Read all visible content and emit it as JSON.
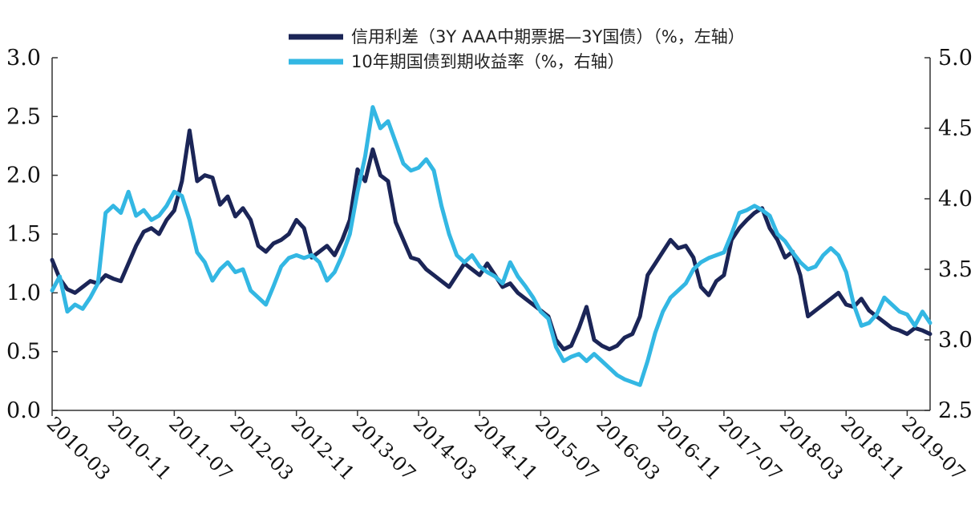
{
  "chart_data": {
    "type": "line",
    "title": "",
    "xlabel": "",
    "ylabel_left": "",
    "ylabel_right": "",
    "x_start": "2010-03",
    "x_end": "2019-10",
    "x_tick_labels": [
      "2010-03",
      "2010-11",
      "2011-07",
      "2012-03",
      "2012-11",
      "2013-07",
      "2014-03",
      "2014-11",
      "2015-07",
      "2016-03",
      "2016-11",
      "2017-07",
      "2018-03",
      "2018-11",
      "2019-07"
    ],
    "y_left": {
      "range": [
        0,
        3.0
      ],
      "ticks": [
        "0.0",
        "0.5",
        "1.0",
        "1.5",
        "2.0",
        "2.5",
        "3.0"
      ]
    },
    "y_right": {
      "range": [
        2.5,
        5.0
      ],
      "ticks": [
        "2.5",
        "3.0",
        "3.5",
        "4.0",
        "4.5",
        "5.0"
      ]
    },
    "grid": false,
    "legend_position": "top-center",
    "series": [
      {
        "name": "信用利差（3Y AAA中期票据—3Y国债）（%，左轴）",
        "axis": "left",
        "color": "#1b2557",
        "points": [
          [
            "2010-03",
            1.28
          ],
          [
            "2010-04",
            1.12
          ],
          [
            "2010-05",
            1.03
          ],
          [
            "2010-06",
            1.0
          ],
          [
            "2010-07",
            1.05
          ],
          [
            "2010-08",
            1.1
          ],
          [
            "2010-09",
            1.08
          ],
          [
            "2010-10",
            1.15
          ],
          [
            "2010-11",
            1.12
          ],
          [
            "2010-12",
            1.1
          ],
          [
            "2011-01",
            1.25
          ],
          [
            "2011-02",
            1.4
          ],
          [
            "2011-03",
            1.52
          ],
          [
            "2011-04",
            1.55
          ],
          [
            "2011-05",
            1.5
          ],
          [
            "2011-06",
            1.62
          ],
          [
            "2011-07",
            1.7
          ],
          [
            "2011-08",
            1.95
          ],
          [
            "2011-09",
            2.38
          ],
          [
            "2011-10",
            1.95
          ],
          [
            "2011-11",
            2.0
          ],
          [
            "2011-12",
            1.98
          ],
          [
            "2012-01",
            1.75
          ],
          [
            "2012-02",
            1.82
          ],
          [
            "2012-03",
            1.65
          ],
          [
            "2012-04",
            1.72
          ],
          [
            "2012-05",
            1.62
          ],
          [
            "2012-06",
            1.4
          ],
          [
            "2012-07",
            1.35
          ],
          [
            "2012-08",
            1.42
          ],
          [
            "2012-09",
            1.45
          ],
          [
            "2012-10",
            1.5
          ],
          [
            "2012-11",
            1.62
          ],
          [
            "2012-12",
            1.55
          ],
          [
            "2013-01",
            1.3
          ],
          [
            "2013-02",
            1.35
          ],
          [
            "2013-03",
            1.4
          ],
          [
            "2013-04",
            1.32
          ],
          [
            "2013-05",
            1.45
          ],
          [
            "2013-06",
            1.62
          ],
          [
            "2013-07",
            2.05
          ],
          [
            "2013-08",
            1.95
          ],
          [
            "2013-09",
            2.22
          ],
          [
            "2013-10",
            2.0
          ],
          [
            "2013-11",
            1.95
          ],
          [
            "2013-12",
            1.6
          ],
          [
            "2014-01",
            1.45
          ],
          [
            "2014-02",
            1.3
          ],
          [
            "2014-03",
            1.28
          ],
          [
            "2014-04",
            1.2
          ],
          [
            "2014-05",
            1.15
          ],
          [
            "2014-06",
            1.1
          ],
          [
            "2014-07",
            1.05
          ],
          [
            "2014-08",
            1.15
          ],
          [
            "2014-09",
            1.25
          ],
          [
            "2014-10",
            1.2
          ],
          [
            "2014-11",
            1.15
          ],
          [
            "2014-12",
            1.25
          ],
          [
            "2015-01",
            1.15
          ],
          [
            "2015-02",
            1.05
          ],
          [
            "2015-03",
            1.08
          ],
          [
            "2015-04",
            1.0
          ],
          [
            "2015-05",
            0.95
          ],
          [
            "2015-06",
            0.9
          ],
          [
            "2015-07",
            0.85
          ],
          [
            "2015-08",
            0.8
          ],
          [
            "2015-09",
            0.6
          ],
          [
            "2015-10",
            0.52
          ],
          [
            "2015-11",
            0.55
          ],
          [
            "2015-12",
            0.7
          ],
          [
            "2016-01",
            0.88
          ],
          [
            "2016-02",
            0.6
          ],
          [
            "2016-03",
            0.55
          ],
          [
            "2016-04",
            0.52
          ],
          [
            "2016-05",
            0.55
          ],
          [
            "2016-06",
            0.62
          ],
          [
            "2016-07",
            0.65
          ],
          [
            "2016-08",
            0.8
          ],
          [
            "2016-09",
            1.15
          ],
          [
            "2016-10",
            1.25
          ],
          [
            "2016-11",
            1.35
          ],
          [
            "2016-12",
            1.45
          ],
          [
            "2017-01",
            1.38
          ],
          [
            "2017-02",
            1.4
          ],
          [
            "2017-03",
            1.3
          ],
          [
            "2017-04",
            1.05
          ],
          [
            "2017-05",
            0.98
          ],
          [
            "2017-06",
            1.1
          ],
          [
            "2017-07",
            1.15
          ],
          [
            "2017-08",
            1.45
          ],
          [
            "2017-09",
            1.55
          ],
          [
            "2017-10",
            1.62
          ],
          [
            "2017-11",
            1.68
          ],
          [
            "2017-12",
            1.72
          ],
          [
            "2018-01",
            1.55
          ],
          [
            "2018-02",
            1.45
          ],
          [
            "2018-03",
            1.3
          ],
          [
            "2018-04",
            1.35
          ],
          [
            "2018-05",
            1.15
          ],
          [
            "2018-06",
            0.8
          ],
          [
            "2018-07",
            0.85
          ],
          [
            "2018-08",
            0.9
          ],
          [
            "2018-09",
            0.95
          ],
          [
            "2018-10",
            1.0
          ],
          [
            "2018-11",
            0.9
          ],
          [
            "2018-12",
            0.88
          ],
          [
            "2019-01",
            0.95
          ],
          [
            "2019-02",
            0.85
          ],
          [
            "2019-03",
            0.8
          ],
          [
            "2019-04",
            0.75
          ],
          [
            "2019-05",
            0.7
          ],
          [
            "2019-06",
            0.68
          ],
          [
            "2019-07",
            0.65
          ],
          [
            "2019-08",
            0.7
          ],
          [
            "2019-09",
            0.68
          ],
          [
            "2019-10",
            0.65
          ]
        ]
      },
      {
        "name": "10年期国债到期收益率（%，右轴）",
        "axis": "right",
        "color": "#33b7e3",
        "points": [
          [
            "2010-03",
            3.35
          ],
          [
            "2010-04",
            3.45
          ],
          [
            "2010-05",
            3.2
          ],
          [
            "2010-06",
            3.25
          ],
          [
            "2010-07",
            3.22
          ],
          [
            "2010-08",
            3.3
          ],
          [
            "2010-09",
            3.4
          ],
          [
            "2010-10",
            3.9
          ],
          [
            "2010-11",
            3.95
          ],
          [
            "2010-12",
            3.9
          ],
          [
            "2011-01",
            4.05
          ],
          [
            "2011-02",
            3.88
          ],
          [
            "2011-03",
            3.92
          ],
          [
            "2011-04",
            3.85
          ],
          [
            "2011-05",
            3.88
          ],
          [
            "2011-06",
            3.95
          ],
          [
            "2011-07",
            4.05
          ],
          [
            "2011-08",
            4.02
          ],
          [
            "2011-09",
            3.85
          ],
          [
            "2011-10",
            3.62
          ],
          [
            "2011-11",
            3.55
          ],
          [
            "2011-12",
            3.42
          ],
          [
            "2012-01",
            3.5
          ],
          [
            "2012-02",
            3.55
          ],
          [
            "2012-03",
            3.48
          ],
          [
            "2012-04",
            3.5
          ],
          [
            "2012-05",
            3.35
          ],
          [
            "2012-06",
            3.3
          ],
          [
            "2012-07",
            3.25
          ],
          [
            "2012-08",
            3.38
          ],
          [
            "2012-09",
            3.52
          ],
          [
            "2012-10",
            3.58
          ],
          [
            "2012-11",
            3.6
          ],
          [
            "2012-12",
            3.58
          ],
          [
            "2013-01",
            3.6
          ],
          [
            "2013-02",
            3.55
          ],
          [
            "2013-03",
            3.42
          ],
          [
            "2013-04",
            3.48
          ],
          [
            "2013-05",
            3.6
          ],
          [
            "2013-06",
            3.75
          ],
          [
            "2013-07",
            4.05
          ],
          [
            "2013-08",
            4.3
          ],
          [
            "2013-09",
            4.65
          ],
          [
            "2013-10",
            4.5
          ],
          [
            "2013-11",
            4.55
          ],
          [
            "2013-12",
            4.4
          ],
          [
            "2014-01",
            4.25
          ],
          [
            "2014-02",
            4.2
          ],
          [
            "2014-03",
            4.22
          ],
          [
            "2014-04",
            4.28
          ],
          [
            "2014-05",
            4.2
          ],
          [
            "2014-06",
            3.95
          ],
          [
            "2014-07",
            3.75
          ],
          [
            "2014-08",
            3.6
          ],
          [
            "2014-09",
            3.55
          ],
          [
            "2014-10",
            3.6
          ],
          [
            "2014-11",
            3.52
          ],
          [
            "2014-12",
            3.48
          ],
          [
            "2015-01",
            3.45
          ],
          [
            "2015-02",
            3.4
          ],
          [
            "2015-03",
            3.55
          ],
          [
            "2015-04",
            3.45
          ],
          [
            "2015-05",
            3.38
          ],
          [
            "2015-06",
            3.3
          ],
          [
            "2015-07",
            3.2
          ],
          [
            "2015-08",
            3.15
          ],
          [
            "2015-09",
            2.95
          ],
          [
            "2015-10",
            2.85
          ],
          [
            "2015-11",
            2.88
          ],
          [
            "2015-12",
            2.9
          ],
          [
            "2016-01",
            2.85
          ],
          [
            "2016-02",
            2.9
          ],
          [
            "2016-03",
            2.85
          ],
          [
            "2016-04",
            2.8
          ],
          [
            "2016-05",
            2.75
          ],
          [
            "2016-06",
            2.72
          ],
          [
            "2016-07",
            2.7
          ],
          [
            "2016-08",
            2.68
          ],
          [
            "2016-09",
            2.85
          ],
          [
            "2016-10",
            3.05
          ],
          [
            "2016-11",
            3.2
          ],
          [
            "2016-12",
            3.3
          ],
          [
            "2017-01",
            3.35
          ],
          [
            "2017-02",
            3.4
          ],
          [
            "2017-03",
            3.5
          ],
          [
            "2017-04",
            3.55
          ],
          [
            "2017-05",
            3.58
          ],
          [
            "2017-06",
            3.6
          ],
          [
            "2017-07",
            3.62
          ],
          [
            "2017-08",
            3.75
          ],
          [
            "2017-09",
            3.9
          ],
          [
            "2017-10",
            3.92
          ],
          [
            "2017-11",
            3.95
          ],
          [
            "2017-12",
            3.92
          ],
          [
            "2018-01",
            3.88
          ],
          [
            "2018-02",
            3.75
          ],
          [
            "2018-03",
            3.7
          ],
          [
            "2018-04",
            3.62
          ],
          [
            "2018-05",
            3.55
          ],
          [
            "2018-06",
            3.5
          ],
          [
            "2018-07",
            3.52
          ],
          [
            "2018-08",
            3.6
          ],
          [
            "2018-09",
            3.65
          ],
          [
            "2018-10",
            3.6
          ],
          [
            "2018-11",
            3.48
          ],
          [
            "2018-12",
            3.25
          ],
          [
            "2019-01",
            3.1
          ],
          [
            "2019-02",
            3.12
          ],
          [
            "2019-03",
            3.18
          ],
          [
            "2019-04",
            3.3
          ],
          [
            "2019-05",
            3.25
          ],
          [
            "2019-06",
            3.2
          ],
          [
            "2019-07",
            3.18
          ],
          [
            "2019-08",
            3.1
          ],
          [
            "2019-09",
            3.2
          ],
          [
            "2019-10",
            3.12
          ]
        ]
      }
    ]
  }
}
